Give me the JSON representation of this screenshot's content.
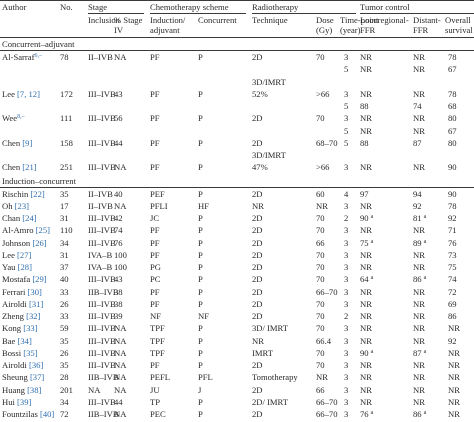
{
  "header": {
    "author": "Author",
    "no": "No.",
    "stage": "Stage",
    "inclusion": "Inclusion",
    "pct_stage_iv": [
      "% Stage",
      "IV"
    ],
    "chemo_scheme": "Chemotherapy scheme",
    "induction_adjuvant": [
      "Induction/",
      "adjuvant"
    ],
    "concurrent": "Concurrent",
    "radiotherapy": "Radiotherapy",
    "technique": "Technique",
    "dose": [
      "Dose",
      "(Gy)"
    ],
    "timepoint": [
      "Time-point",
      "(year)"
    ],
    "tumor_control": "Tumor control",
    "locoregional": [
      "Locoregional-",
      "FFR"
    ],
    "distant": [
      "Distant-",
      "FFR"
    ],
    "overall": [
      "Overall",
      "survival"
    ]
  },
  "sections": {
    "concurrent_adjuvant": "Concurrent–adjuvant",
    "induction_concurrent": "Induction–concurrent"
  },
  "rows": [
    {
      "author": "Al-Sarraf",
      "ref": "",
      "sup": "6,–",
      "no": "78",
      "inc": "II–IVB",
      "pct": "NA",
      "ind": "PF",
      "conc": "P",
      "tech": "2D",
      "dose": "70",
      "tp": "3",
      "loco": "NR",
      "loco_sup": "",
      "dist": "NR",
      "dist_sup": "",
      "os": "78"
    },
    {
      "author": "",
      "ref": "",
      "sup": "",
      "no": "",
      "inc": "",
      "pct": "",
      "ind": "",
      "conc": "",
      "tech": "",
      "dose": "",
      "tp": "5",
      "loco": "NR",
      "loco_sup": "",
      "dist": "NR",
      "dist_sup": "",
      "os": "67"
    },
    {
      "author": "",
      "ref": "",
      "sup": "",
      "no": "",
      "inc": "",
      "pct": "",
      "ind": "",
      "conc": "",
      "tech": "3D/IMRT",
      "dose": "",
      "tp": "",
      "loco": "",
      "loco_sup": "",
      "dist": "",
      "dist_sup": "",
      "os": ""
    },
    {
      "author": "Lee ",
      "ref": "[7, 12]",
      "sup": "",
      "no": "172",
      "inc": "III–IVB",
      "pct": "43",
      "ind": "PF",
      "conc": "P",
      "tech": "52%",
      "dose": ">66",
      "tp": "3",
      "loco": "NR",
      "loco_sup": "",
      "dist": "NR",
      "dist_sup": "",
      "os": "78"
    },
    {
      "author": "",
      "ref": "",
      "sup": "",
      "no": "",
      "inc": "",
      "pct": "",
      "ind": "",
      "conc": "",
      "tech": "",
      "dose": "",
      "tp": "5",
      "loco": "88",
      "loco_sup": "",
      "dist": "74",
      "dist_sup": "",
      "os": "68"
    },
    {
      "author": "Wee",
      "ref": "",
      "sup": "8,–",
      "no": "111",
      "inc": "III–IVB",
      "pct": "56",
      "ind": "PF",
      "conc": "P",
      "tech": "2D",
      "dose": "70",
      "tp": "3",
      "loco": "NR",
      "loco_sup": "",
      "dist": "NR",
      "dist_sup": "",
      "os": "80"
    },
    {
      "author": "",
      "ref": "",
      "sup": "",
      "no": "",
      "inc": "",
      "pct": "",
      "ind": "",
      "conc": "",
      "tech": "",
      "dose": "",
      "tp": "5",
      "loco": "NR",
      "loco_sup": "",
      "dist": "NR",
      "dist_sup": "",
      "os": "67"
    },
    {
      "author": "Chen ",
      "ref": "[9]",
      "sup": "",
      "no": "158",
      "inc": "III–IVB",
      "pct": "44",
      "ind": "PF",
      "conc": "P",
      "tech": "2D",
      "dose": "68–70",
      "tp": "5",
      "loco": "88",
      "loco_sup": "",
      "dist": "87",
      "dist_sup": "",
      "os": "80"
    },
    {
      "author": "",
      "ref": "",
      "sup": "",
      "no": "",
      "inc": "",
      "pct": "",
      "ind": "",
      "conc": "",
      "tech": "3D/IMRT",
      "dose": "",
      "tp": "",
      "loco": "",
      "loco_sup": "",
      "dist": "",
      "dist_sup": "",
      "os": ""
    },
    {
      "author": "Chen ",
      "ref": "[21]",
      "sup": "",
      "no": "251",
      "inc": "III–IVB",
      "pct": "NA",
      "ind": "PF",
      "conc": "P",
      "tech": "47%",
      "dose": ">66",
      "tp": "3",
      "loco": "NR",
      "loco_sup": "",
      "dist": "NR",
      "dist_sup": "",
      "os": "90"
    },
    {
      "author": "Rischin ",
      "ref": "[22]",
      "sup": "",
      "no": "35",
      "inc": "II–IVB",
      "pct": "40",
      "ind": "PEF",
      "conc": "P",
      "tech": "2D",
      "dose": "60",
      "tp": "4",
      "loco": "97",
      "loco_sup": "",
      "dist": "94",
      "dist_sup": "",
      "os": "90"
    },
    {
      "author": "Oh ",
      "ref": "[23]",
      "sup": "",
      "no": "17",
      "inc": "II–IVB",
      "pct": "NA",
      "ind": "PFLI",
      "conc": "HF",
      "tech": "NR",
      "dose": "NR",
      "tp": "3",
      "loco": "NR",
      "loco_sup": "",
      "dist": "92",
      "dist_sup": "",
      "os": "78"
    },
    {
      "author": "Chan ",
      "ref": "[24]",
      "sup": "",
      "no": "31",
      "inc": "III–IVB",
      "pct": "42",
      "ind": "JC",
      "conc": "P",
      "tech": "2D",
      "dose": "70",
      "tp": "2",
      "loco": "90",
      "loco_sup": "a",
      "dist": "81",
      "dist_sup": "a",
      "os": "92"
    },
    {
      "author": "Al-Amro ",
      "ref": "[25]",
      "sup": "",
      "no": "110",
      "inc": "III–IVB",
      "pct": "74",
      "ind": "PF",
      "conc": "P",
      "tech": "2D",
      "dose": "70",
      "tp": "3",
      "loco": "NR",
      "loco_sup": "",
      "dist": "NR",
      "dist_sup": "",
      "os": "71"
    },
    {
      "author": "Johnson ",
      "ref": "[26]",
      "sup": "",
      "no": "34",
      "inc": "III–IVB",
      "pct": "76",
      "ind": "PF",
      "conc": "P",
      "tech": "2D",
      "dose": "66",
      "tp": "3",
      "loco": "75",
      "loco_sup": "a",
      "dist": "89",
      "dist_sup": "a",
      "os": "76"
    },
    {
      "author": "Lee ",
      "ref": "[27]",
      "sup": "",
      "no": "31",
      "inc": "IVA–B",
      "pct": "100",
      "ind": "PF",
      "conc": "P",
      "tech": "2D",
      "dose": "70",
      "tp": "3",
      "loco": "NR",
      "loco_sup": "",
      "dist": "NR",
      "dist_sup": "",
      "os": "73"
    },
    {
      "author": "Yau ",
      "ref": "[28]",
      "sup": "",
      "no": "37",
      "inc": "IVA–B",
      "pct": "100",
      "ind": "PG",
      "conc": "P",
      "tech": "2D",
      "dose": "70",
      "tp": "3",
      "loco": "NR",
      "loco_sup": "",
      "dist": "NR",
      "dist_sup": "",
      "os": "75"
    },
    {
      "author": "Mostafa ",
      "ref": "[29]",
      "sup": "",
      "no": "40",
      "inc": "III–IVB",
      "pct": "43",
      "ind": "PC",
      "conc": "P",
      "tech": "2D",
      "dose": "70",
      "tp": "3",
      "loco": "64",
      "loco_sup": "a",
      "dist": "86",
      "dist_sup": "a",
      "os": "74"
    },
    {
      "author": "Ferrari ",
      "ref": "[30]",
      "sup": "",
      "no": "33",
      "inc": "IIB–IVB",
      "pct": "38",
      "ind": "PF",
      "conc": "P",
      "tech": "2D",
      "dose": "66–70",
      "tp": "3",
      "loco": "NR",
      "loco_sup": "",
      "dist": "NR",
      "dist_sup": "",
      "os": "72"
    },
    {
      "author": "Airoldi ",
      "ref": "[31]",
      "sup": "",
      "no": "26",
      "inc": "III–IVB",
      "pct": "38",
      "ind": "PF",
      "conc": "P",
      "tech": "2D",
      "dose": "70",
      "tp": "3",
      "loco": "NR",
      "loco_sup": "",
      "dist": "NR",
      "dist_sup": "",
      "os": "69"
    },
    {
      "author": "Zheng ",
      "ref": "[32]",
      "sup": "",
      "no": "33",
      "inc": "III–IVB",
      "pct": "39",
      "ind": "NF",
      "conc": "NF",
      "tech": "2D",
      "dose": "70",
      "tp": "2",
      "loco": "NR",
      "loco_sup": "",
      "dist": "NR",
      "dist_sup": "",
      "os": "86"
    },
    {
      "author": "Kong ",
      "ref": "[33]",
      "sup": "",
      "no": "59",
      "inc": "III–IVB",
      "pct": "NA",
      "ind": "TPF",
      "conc": "P",
      "tech": "3D/ IMRT",
      "dose": "70",
      "tp": "3",
      "loco": "NR",
      "loco_sup": "",
      "dist": "NR",
      "dist_sup": "",
      "os": "NR"
    },
    {
      "author": "Bae ",
      "ref": "[34]",
      "sup": "",
      "no": "35",
      "inc": "III–IVB",
      "pct": "NA",
      "ind": "TPF",
      "conc": "P",
      "tech": "NR",
      "dose": "66.4",
      "tp": "3",
      "loco": "NR",
      "loco_sup": "",
      "dist": "NR",
      "dist_sup": "",
      "os": "92"
    },
    {
      "author": "Bossi ",
      "ref": "[35]",
      "sup": "",
      "no": "26",
      "inc": "III–IVB",
      "pct": "NA",
      "ind": "TPF",
      "conc": "P",
      "tech": "IMRT",
      "dose": "70",
      "tp": "3",
      "loco": "90",
      "loco_sup": "a",
      "dist": "87",
      "dist_sup": "a",
      "os": "NR"
    },
    {
      "author": "Airoldi ",
      "ref": "[36]",
      "sup": "",
      "no": "35",
      "inc": "III–IVB",
      "pct": "NA",
      "ind": "PF",
      "conc": "P",
      "tech": "2D",
      "dose": "70",
      "tp": "3",
      "loco": "NR",
      "loco_sup": "",
      "dist": "NR",
      "dist_sup": "",
      "os": "NR"
    },
    {
      "author": "Sheung ",
      "ref": "[37]",
      "sup": "",
      "no": "28",
      "inc": "IIB–IVB",
      "pct": "NA",
      "ind": "PEFL",
      "conc": "PFL",
      "tech": "Tomotherapy",
      "dose": "NR",
      "tp": "3",
      "loco": "NR",
      "loco_sup": "",
      "dist": "NR",
      "dist_sup": "",
      "os": "NR"
    },
    {
      "author": "Huang ",
      "ref": "[38]",
      "sup": "",
      "no": "201",
      "inc": "NA",
      "pct": "NA",
      "ind": "JU",
      "conc": "J",
      "tech": "2D",
      "dose": "66",
      "tp": "3",
      "loco": "NR",
      "loco_sup": "",
      "dist": "NR",
      "dist_sup": "",
      "os": "NR"
    },
    {
      "author": "Hui ",
      "ref": "[39]",
      "sup": "",
      "no": "34",
      "inc": "III–IVB",
      "pct": "44",
      "ind": "TP",
      "conc": "P",
      "tech": "2D/ IMRT",
      "dose": "66–70",
      "tp": "3",
      "loco": "NR",
      "loco_sup": "",
      "dist": "NR",
      "dist_sup": "",
      "os": "NR"
    },
    {
      "author": "Fountzilas ",
      "ref": "[40]",
      "sup": "",
      "no": "72",
      "inc": "IIB–IVB",
      "pct": "NA",
      "ind": "PEC",
      "conc": "P",
      "tech": "2D",
      "dose": "66–70",
      "tp": "3",
      "loco": "76",
      "loco_sup": "a",
      "dist": "86",
      "dist_sup": "a",
      "os": "NR"
    }
  ]
}
